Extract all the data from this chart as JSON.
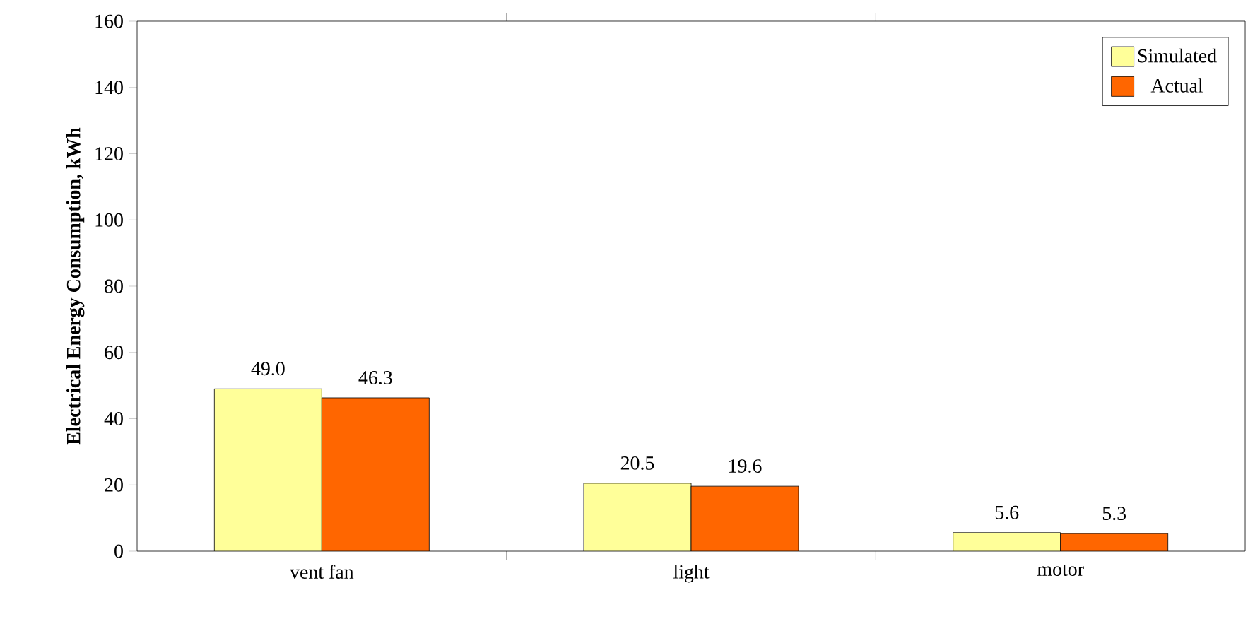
{
  "chart_data": {
    "type": "bar",
    "ylabel": "**Electrical Energy Consumption, kWh**",
    "categories": [
      "vent fan",
      "light",
      "motor"
    ],
    "series": [
      {
        "name": "Simulated",
        "color": "#ffff99",
        "values": [
          49.0,
          20.5,
          5.6
        ],
        "value_labels": [
          "49.0",
          "20.5",
          "5.6"
        ]
      },
      {
        "name": "Actual",
        "color": "#ff6600",
        "values": [
          46.3,
          19.6,
          5.3
        ],
        "value_labels": [
          "46.3",
          "19.6",
          "5.3"
        ]
      }
    ],
    "ylim": [
      0,
      160
    ],
    "yticks": [
      0,
      20,
      40,
      60,
      80,
      100,
      120,
      140,
      160
    ],
    "legend": "top right"
  }
}
